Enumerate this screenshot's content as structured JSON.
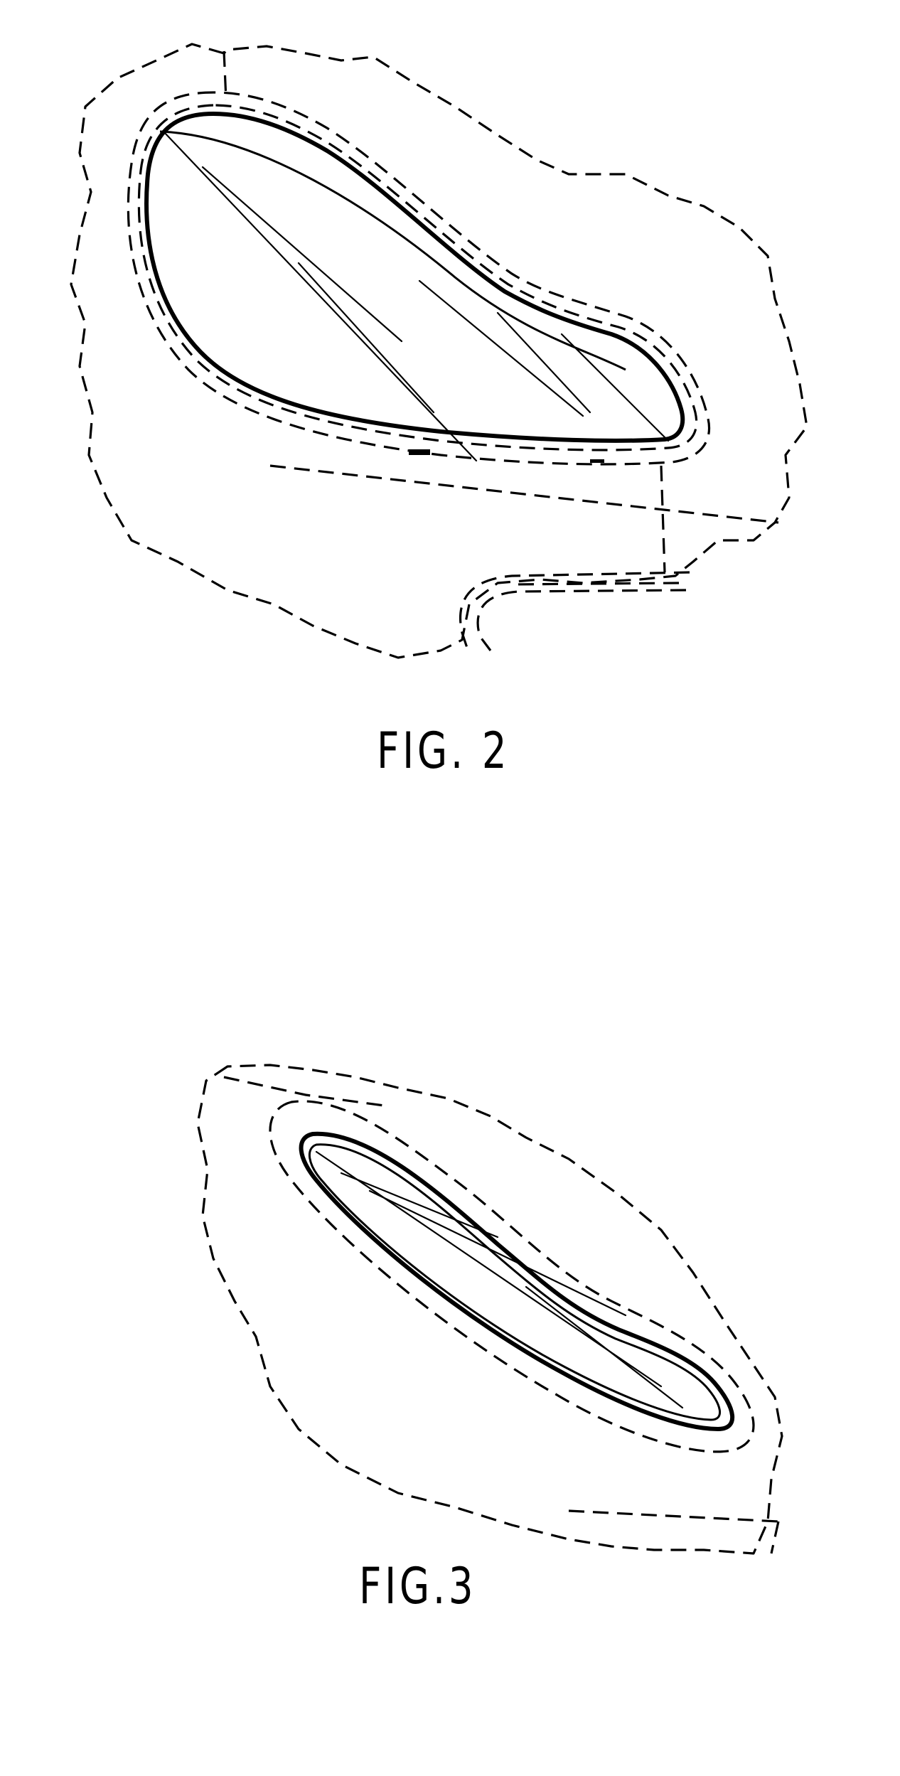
{
  "figures": [
    {
      "caption": "FIG. 2"
    },
    {
      "caption": "FIG.3"
    }
  ],
  "colors": {
    "line": "#000000",
    "background": "#ffffff"
  }
}
